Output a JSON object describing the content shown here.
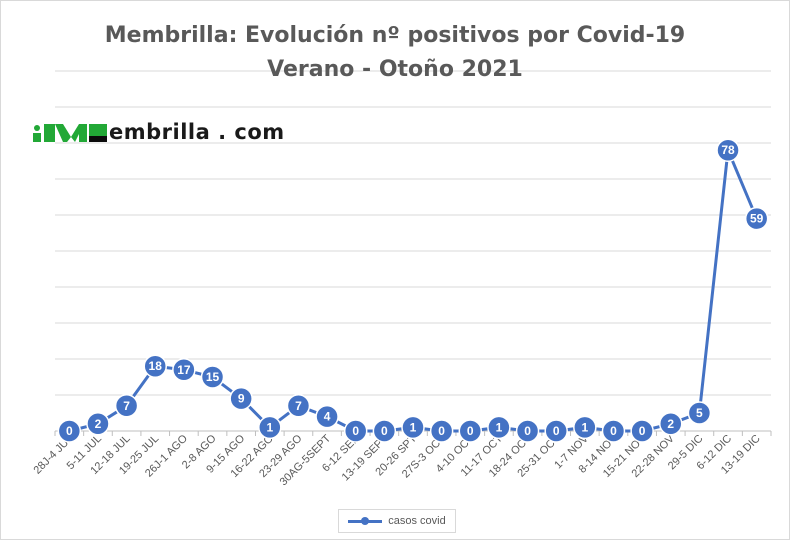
{
  "chart_data": {
    "type": "line",
    "title": "Membrilla: Evolución nº positivos por Covid-19",
    "subtitle": "Verano - Otoño 2021",
    "xlabel": "",
    "ylabel": "",
    "ylim": [
      0,
      100
    ],
    "grid": "horizontal",
    "y_tick_labels_visible": false,
    "data_labels": true,
    "legend_position": "bottom",
    "categories": [
      "28J-4 JUL",
      "5-11 JUL",
      "12-18 JUL",
      "19-25 JUL",
      "26J-1 AGO",
      "2-8 AGO",
      "9-15 AGO",
      "16-22 AGO",
      "23-29 AGO",
      "30AG-5SEPT",
      "6-12 SEP",
      "13-19 SEPT",
      "20-26 SPT",
      "27S-3 OCT",
      "4-10 OCT",
      "11-17 OCT",
      "18-24 OCT",
      "25-31 OCT",
      "1-7 NOV",
      "8-14 NOV",
      "15-21 NOV",
      "22-28 NOV",
      "29-5 DIC",
      "6-12 DIC",
      "13-19 DIC"
    ],
    "series": [
      {
        "name": "casos covid",
        "color": "#4472c4",
        "values": [
          0,
          2,
          7,
          18,
          17,
          15,
          9,
          1,
          7,
          4,
          0,
          0,
          1,
          0,
          0,
          1,
          0,
          0,
          1,
          0,
          0,
          2,
          5,
          78,
          59
        ]
      }
    ]
  },
  "logo": {
    "text": "embrilla . com",
    "icon": "membrilla-m-logo-icon",
    "colors": [
      "#22a836",
      "#0b0b0b"
    ]
  },
  "style": {
    "gridline_color": "#d9d9d9",
    "axis_color": "#bfbfbf",
    "tick_label_color": "#595959",
    "title_color": "#595959"
  }
}
